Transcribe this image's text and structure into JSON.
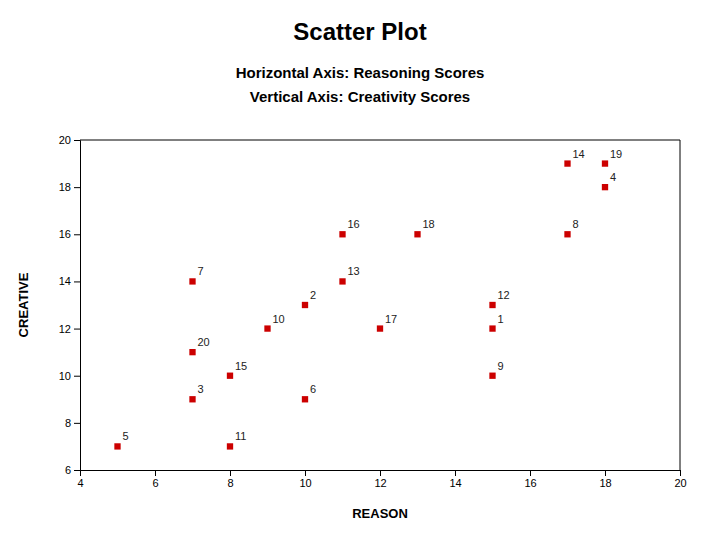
{
  "chart_data": {
    "type": "scatter",
    "title": "Scatter Plot",
    "subtitle": [
      "Horizontal Axis: Reasoning Scores",
      "Vertical Axis: Creativity Scores"
    ],
    "xlabel": "REASON",
    "ylabel": "CREATIVE",
    "xlim": [
      4,
      20
    ],
    "ylim": [
      6,
      20
    ],
    "xticks": [
      4,
      6,
      8,
      10,
      12,
      14,
      16,
      18,
      20
    ],
    "yticks": [
      6,
      8,
      10,
      12,
      14,
      16,
      18,
      20
    ],
    "color": "#cc0000",
    "marker": "square",
    "grid": false,
    "x": [
      5,
      7,
      7,
      7,
      8,
      8,
      9,
      10,
      10,
      11,
      11,
      12,
      13,
      15,
      15,
      15,
      17,
      17,
      18,
      18
    ],
    "values": [
      7,
      14,
      11,
      9,
      10,
      7,
      12,
      13,
      9,
      16,
      14,
      12,
      16,
      12,
      13,
      10,
      16,
      19,
      19,
      18
    ],
    "annotations": [
      "5",
      "7",
      "20",
      "3",
      "15",
      "11",
      "10",
      "2",
      "6",
      "16",
      "13",
      "17",
      "18",
      "1",
      "12",
      "9",
      "8",
      "14",
      "19",
      "4"
    ]
  }
}
